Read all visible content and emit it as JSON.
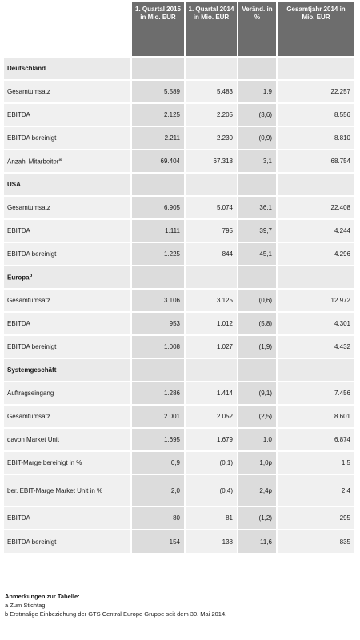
{
  "headers": [
    "",
    "1. Quartal 2015 in Mio. EUR",
    "1. Quartal 2014 in Mio. EUR",
    "Veränd. in %",
    "Gesamtjahr 2014 in Mio. EUR"
  ],
  "sections": [
    {
      "title": "Deutschland",
      "sup": "",
      "rows": [
        {
          "label": "Gesamtumsatz",
          "sup": "",
          "q2015": "5.589",
          "q2014": "5.483",
          "change": "1,9",
          "year2014": "22.257"
        },
        {
          "label": "EBITDA",
          "sup": "",
          "q2015": "2.125",
          "q2014": "2.205",
          "change": "(3,6)",
          "year2014": "8.556"
        },
        {
          "label": "EBITDA bereinigt",
          "sup": "",
          "q2015": "2.211",
          "q2014": "2.230",
          "change": "(0,9)",
          "year2014": "8.810"
        },
        {
          "label": "Anzahl Mitarbeiter",
          "sup": "a",
          "q2015": "69.404",
          "q2014": "67.318",
          "change": "3,1",
          "year2014": "68.754"
        }
      ]
    },
    {
      "title": "USA",
      "sup": "",
      "rows": [
        {
          "label": "Gesamtumsatz",
          "sup": "",
          "q2015": "6.905",
          "q2014": "5.074",
          "change": "36,1",
          "year2014": "22.408"
        },
        {
          "label": "EBITDA",
          "sup": "",
          "q2015": "1.111",
          "q2014": "795",
          "change": "39,7",
          "year2014": "4.244"
        },
        {
          "label": "EBITDA bereinigt",
          "sup": "",
          "q2015": "1.225",
          "q2014": "844",
          "change": "45,1",
          "year2014": "4.296"
        }
      ]
    },
    {
      "title": "Europa",
      "sup": "b",
      "rows": [
        {
          "label": "Gesamtumsatz",
          "sup": "",
          "q2015": "3.106",
          "q2014": "3.125",
          "change": "(0,6)",
          "year2014": "12.972"
        },
        {
          "label": "EBITDA",
          "sup": "",
          "q2015": "953",
          "q2014": "1.012",
          "change": "(5,8)",
          "year2014": "4.301"
        },
        {
          "label": "EBITDA bereinigt",
          "sup": "",
          "q2015": "1.008",
          "q2014": "1.027",
          "change": "(1,9)",
          "year2014": "4.432"
        }
      ]
    },
    {
      "title": "Systemgeschäft",
      "sup": "",
      "rows": [
        {
          "label": "Auftragseingang",
          "sup": "",
          "q2015": "1.286",
          "q2014": "1.414",
          "change": "(9,1)",
          "year2014": "7.456"
        },
        {
          "label": "Gesamtumsatz",
          "sup": "",
          "q2015": "2.001",
          "q2014": "2.052",
          "change": "(2,5)",
          "year2014": "8.601"
        },
        {
          "label": "davon Market Unit",
          "sup": "",
          "q2015": "1.695",
          "q2014": "1.679",
          "change": "1,0",
          "year2014": "6.874"
        },
        {
          "label": "EBIT-Marge bereinigt in %",
          "sup": "",
          "q2015": "0,9",
          "q2014": "(0,1)",
          "change": "1,0p",
          "year2014": "1,5"
        },
        {
          "label": "ber. EBIT-Marge Market Unit in %",
          "sup": "",
          "q2015": "2,0",
          "q2014": "(0,4)",
          "change": "2,4p",
          "year2014": "2,4",
          "tall": true
        },
        {
          "label": "EBITDA",
          "sup": "",
          "q2015": "80",
          "q2014": "81",
          "change": "(1,2)",
          "year2014": "295"
        },
        {
          "label": "EBITDA bereinigt",
          "sup": "",
          "q2015": "154",
          "q2014": "138",
          "change": "11,6",
          "year2014": "835"
        }
      ]
    }
  ],
  "notes": {
    "title": "Anmerkungen zur Tabelle:",
    "items": [
      "a Zum Stichtag.",
      "b Erstmalige Einbeziehung der GTS Central Europe Gruppe seit dem 30. Mai 2014."
    ]
  }
}
